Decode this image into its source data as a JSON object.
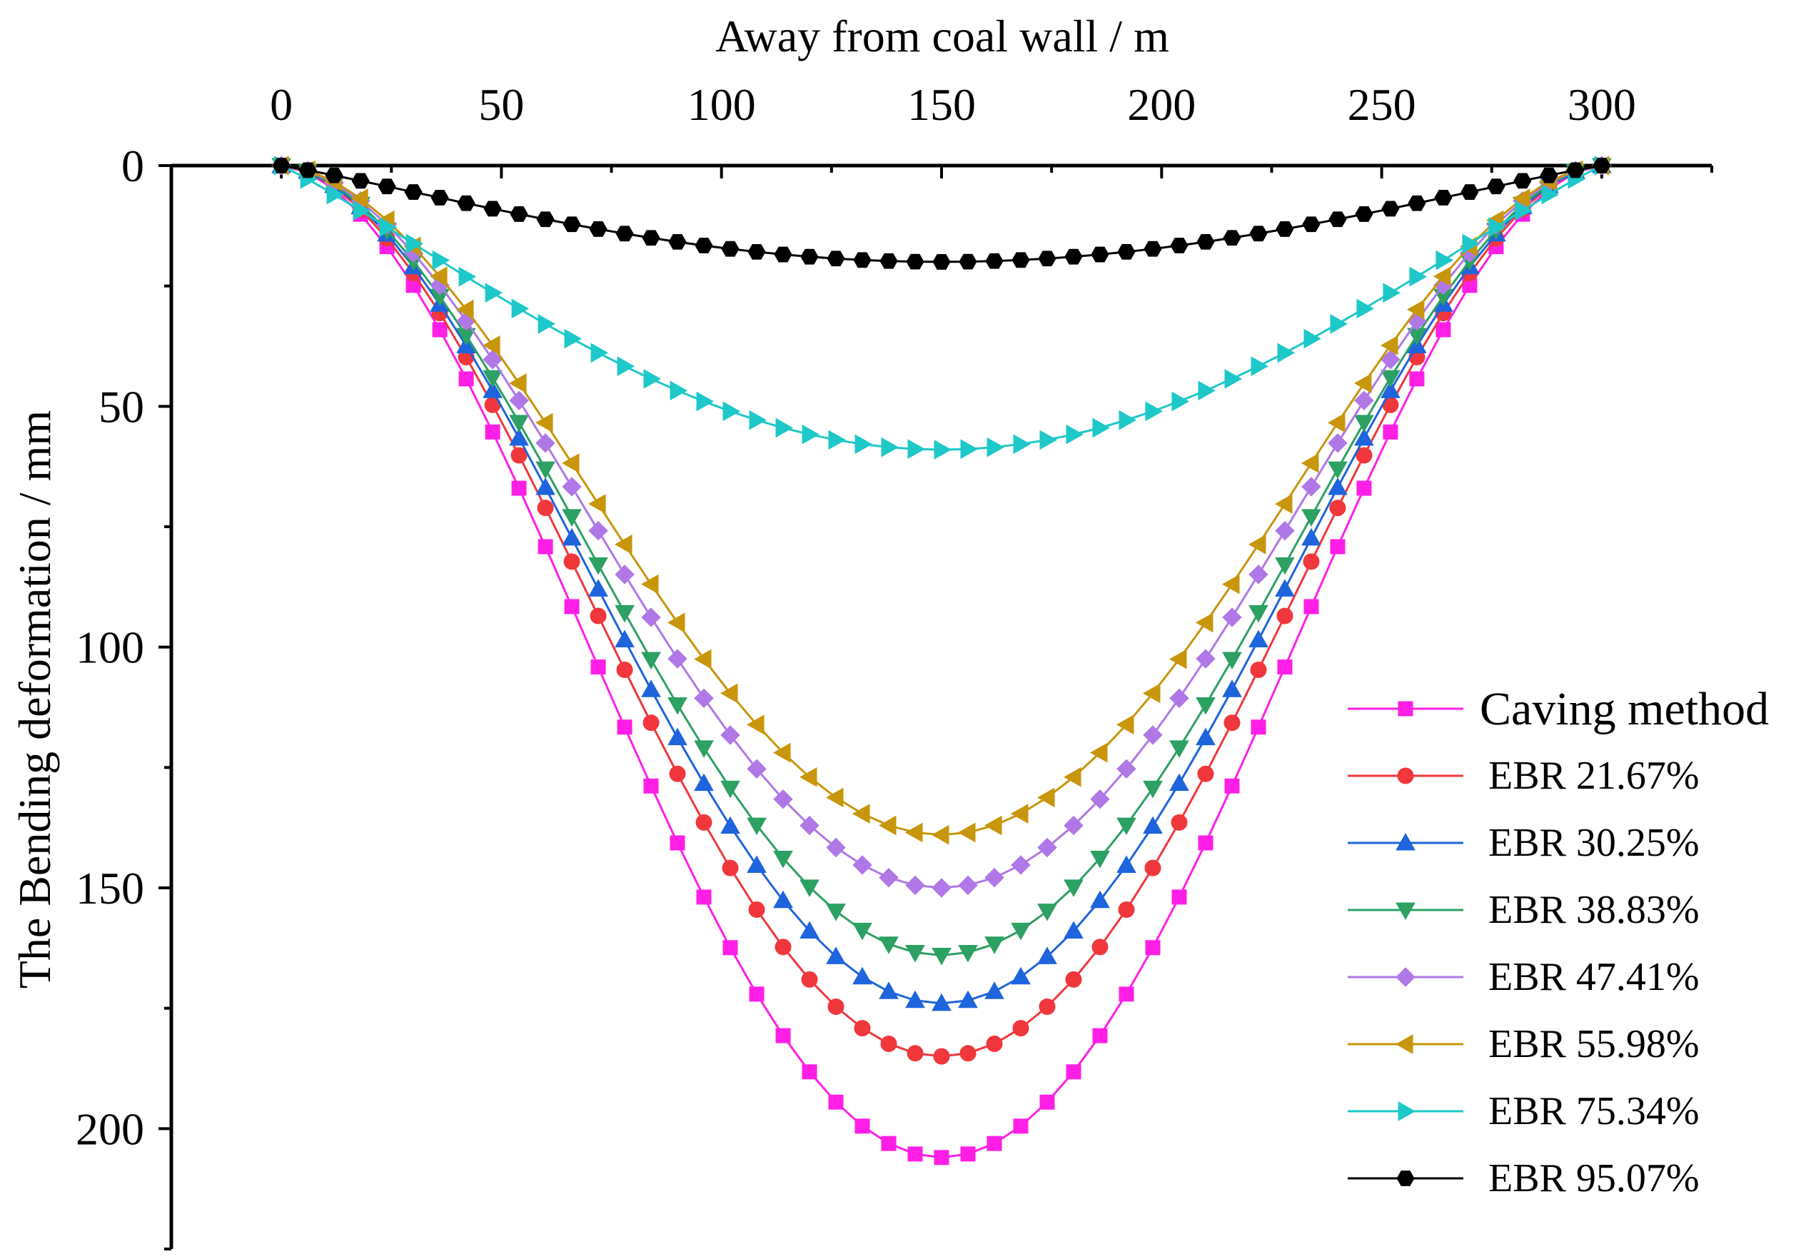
{
  "chart_data": {
    "type": "line",
    "xlabel": "Away from coal wall / m",
    "ylabel": "The Bending deformation  / mm",
    "xlim": [
      -25,
      325
    ],
    "ylim": [
      0,
      225
    ],
    "y_inverted": true,
    "x_axis_position": "top",
    "xticks": [
      0,
      50,
      100,
      150,
      200,
      250,
      300
    ],
    "yticks": [
      0,
      50,
      100,
      150,
      200
    ],
    "x_step": 6,
    "x_count": 51,
    "legend_position": "bottom-right",
    "series": [
      {
        "name": "Caving method",
        "max_deflection": 206,
        "color": "#ff1ee6",
        "marker": "square"
      },
      {
        "name": "EBR 21.67%",
        "max_deflection": 185,
        "color": "#f0373c",
        "marker": "circle"
      },
      {
        "name": "EBR 30.25%",
        "max_deflection": 174,
        "color": "#1e64dc",
        "marker": "triangle-up"
      },
      {
        "name": "EBR 38.83%",
        "max_deflection": 164,
        "color": "#2da064",
        "marker": "triangle-down"
      },
      {
        "name": "EBR 47.41%",
        "max_deflection": 150,
        "color": "#af78e6",
        "marker": "diamond"
      },
      {
        "name": "EBR 55.98%",
        "max_deflection": 139,
        "color": "#c8960a",
        "marker": "triangle-left"
      },
      {
        "name": "EBR 75.34%",
        "max_deflection": 59,
        "color": "#1ec8c8",
        "marker": "triangle-right"
      },
      {
        "name": "EBR 95.07%",
        "max_deflection": 20,
        "color": "#000000",
        "marker": "hexagon"
      }
    ]
  }
}
